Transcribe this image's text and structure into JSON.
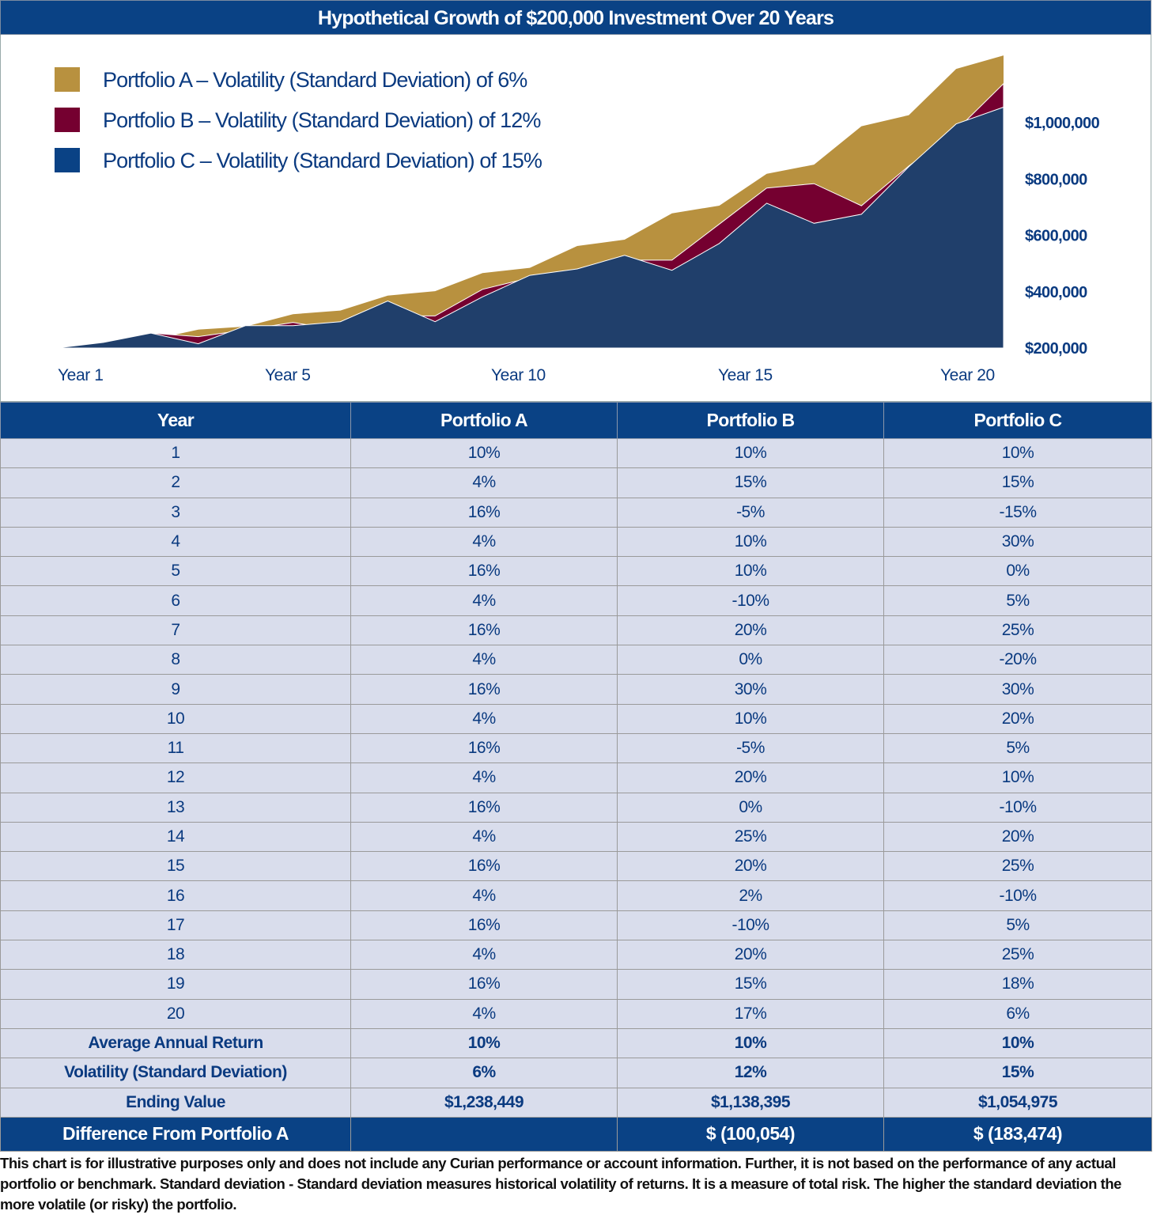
{
  "title": "Hypothetical Growth of $200,000 Investment Over 20 Years",
  "colors": {
    "header": "#0a4285",
    "portfolio_a": "#b8913f",
    "portfolio_b": "#750030",
    "portfolio_c": "#203f6b",
    "legend_c": "#0a4285",
    "row": "#d9ddec"
  },
  "chart_data": {
    "type": "area",
    "title": "Hypothetical Growth of $200,000 Investment Over 20 Years",
    "x_tick_labels": [
      "Year 1",
      "Year 5",
      "Year 10",
      "Year 15",
      "Year 20"
    ],
    "y_tick_labels": [
      "$200,000",
      "$400,000",
      "$600,000",
      "$800,000",
      "$1,000,000"
    ],
    "y_ticks": [
      200000,
      400000,
      600000,
      800000,
      1000000
    ],
    "ylim": [
      200000,
      1250000
    ],
    "grid": false,
    "legend_placement": "top-left",
    "series": [
      {
        "name": "Portfolio A – Volatility (Standard Deviation) of 6%",
        "color": "#b8913f",
        "values": [
          200000,
          220000,
          228800,
          265408,
          276024,
          320188,
          332996,
          386275,
          401726,
          466002,
          484642,
          562185,
          584672,
          678220,
          705349,
          818205,
          850933,
          987082,
          1026565,
          1190815,
          1238449
        ]
      },
      {
        "name": "Portfolio B – Volatility (Standard Deviation) of 12%",
        "color": "#750030",
        "values": [
          200000,
          220000,
          253000,
          240350,
          264385,
          290824,
          261741,
          314089,
          314089,
          408316,
          449147,
          426690,
          512028,
          512028,
          640035,
          768042,
          783403,
          705063,
          846075,
          972987,
          1138395
        ]
      },
      {
        "name": "Portfolio C – Volatility (Standard Deviation) of 15%",
        "color": "#203f6b",
        "values": [
          200000,
          220000,
          253000,
          215050,
          279565,
          279565,
          293543,
          366929,
          293543,
          381606,
          457927,
          480823,
          528906,
          476015,
          571218,
          714023,
          642620,
          674751,
          843439,
          995258,
          1054975
        ]
      }
    ]
  },
  "table": {
    "headers": [
      "Year",
      "Portfolio A",
      "Portfolio B",
      "Portfolio C"
    ],
    "rows": [
      [
        "1",
        "10%",
        "10%",
        "10%"
      ],
      [
        "2",
        "4%",
        "15%",
        "15%"
      ],
      [
        "3",
        "16%",
        "-5%",
        "-15%"
      ],
      [
        "4",
        "4%",
        "10%",
        "30%"
      ],
      [
        "5",
        "16%",
        "10%",
        "0%"
      ],
      [
        "6",
        "4%",
        "-10%",
        "5%"
      ],
      [
        "7",
        "16%",
        "20%",
        "25%"
      ],
      [
        "8",
        "4%",
        "0%",
        "-20%"
      ],
      [
        "9",
        "16%",
        "30%",
        "30%"
      ],
      [
        "10",
        "4%",
        "10%",
        "20%"
      ],
      [
        "11",
        "16%",
        "-5%",
        "5%"
      ],
      [
        "12",
        "4%",
        "20%",
        "10%"
      ],
      [
        "13",
        "16%",
        "0%",
        "-10%"
      ],
      [
        "14",
        "4%",
        "25%",
        "20%"
      ],
      [
        "15",
        "16%",
        "20%",
        "25%"
      ],
      [
        "16",
        "4%",
        "2%",
        "-10%"
      ],
      [
        "17",
        "16%",
        "-10%",
        "5%"
      ],
      [
        "18",
        "4%",
        "20%",
        "25%"
      ],
      [
        "19",
        "16%",
        "15%",
        "18%"
      ],
      [
        "20",
        "4%",
        "17%",
        "6%"
      ]
    ],
    "summary": [
      [
        "Average Annual Return",
        "10%",
        "10%",
        "10%"
      ],
      [
        "Volatility (Standard Deviation)",
        "6%",
        "12%",
        "15%"
      ],
      [
        "Ending Value",
        "$1,238,449",
        "$1,138,395",
        "$1,054,975"
      ]
    ],
    "difference": [
      "Difference From Portfolio A",
      "",
      "$ (100,054)",
      "$ (183,474)"
    ]
  },
  "footnote": "This chart is for illustrative purposes only and does not include any Curian performance or account information. Further, it is not based on the performance of any actual portfolio or benchmark. Standard deviation - Standard deviation measures historical volatility of returns. It is a measure of total risk. The higher the standard deviation the more volatile (or risky) the portfolio."
}
